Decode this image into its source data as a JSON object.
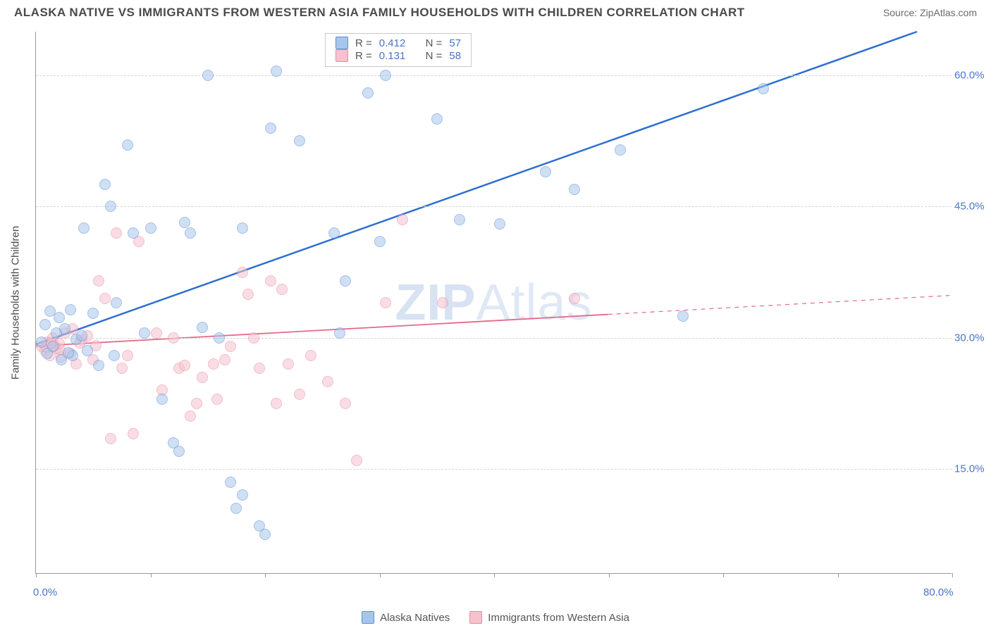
{
  "title": "ALASKA NATIVE VS IMMIGRANTS FROM WESTERN ASIA FAMILY HOUSEHOLDS WITH CHILDREN CORRELATION CHART",
  "source": "Source: ZipAtlas.com",
  "watermark_bold": "ZIP",
  "watermark_thin": "Atlas",
  "y_axis_label": "Family Households with Children",
  "xlim": [
    0,
    80
  ],
  "ylim": [
    3,
    65
  ],
  "x_ticks": [
    0,
    10,
    20,
    30,
    40,
    50,
    60,
    70,
    80
  ],
  "x_tick_labels_shown": {
    "0": "0.0%",
    "80": "80.0%"
  },
  "y_gridlines": [
    15,
    30,
    45,
    60
  ],
  "y_tick_labels": {
    "15": "15.0%",
    "30": "30.0%",
    "45": "45.0%",
    "60": "60.0%"
  },
  "series": {
    "blue": {
      "name": "Alaska Natives",
      "color_fill": "#a8c6ec",
      "color_stroke": "#5a8dd6",
      "trend_color": "#2e6fd1",
      "trend_width": 2.5,
      "R": "0.412",
      "N": "57",
      "trend": {
        "x1": 0,
        "y1": 29.2,
        "x2": 77,
        "y2": 65
      },
      "trend_solid_until_x": 77,
      "points": [
        [
          0.5,
          29.5
        ],
        [
          0.8,
          31.5
        ],
        [
          1.0,
          28.2
        ],
        [
          1.2,
          33.0
        ],
        [
          1.5,
          29.0
        ],
        [
          1.8,
          30.5
        ],
        [
          2.0,
          32.3
        ],
        [
          2.2,
          27.5
        ],
        [
          2.5,
          31.0
        ],
        [
          3.0,
          33.2
        ],
        [
          3.2,
          28.0
        ],
        [
          3.5,
          29.8
        ],
        [
          4.0,
          30.2
        ],
        [
          4.5,
          28.5
        ],
        [
          5.0,
          32.8
        ],
        [
          6.0,
          47.5
        ],
        [
          6.5,
          45.0
        ],
        [
          7.0,
          34.0
        ],
        [
          8.0,
          52.0
        ],
        [
          8.5,
          42.0
        ],
        [
          9.5,
          30.5
        ],
        [
          10.0,
          42.5
        ],
        [
          11.0,
          23.0
        ],
        [
          12.0,
          18.0
        ],
        [
          12.5,
          17.0
        ],
        [
          13.0,
          43.2
        ],
        [
          15.0,
          60.0
        ],
        [
          16.0,
          30.0
        ],
        [
          17.0,
          13.5
        ],
        [
          17.5,
          10.5
        ],
        [
          18.0,
          12.0
        ],
        [
          19.5,
          8.5
        ],
        [
          20.0,
          7.5
        ],
        [
          20.5,
          54.0
        ],
        [
          21.0,
          60.5
        ],
        [
          23.0,
          52.5
        ],
        [
          26.0,
          42.0
        ],
        [
          26.5,
          30.5
        ],
        [
          27.0,
          36.5
        ],
        [
          29.0,
          58.0
        ],
        [
          30.0,
          41.0
        ],
        [
          30.5,
          60.0
        ],
        [
          35.0,
          55.0
        ],
        [
          37.0,
          43.5
        ],
        [
          40.5,
          43.0
        ],
        [
          44.5,
          49.0
        ],
        [
          47.0,
          47.0
        ],
        [
          51.0,
          51.5
        ],
        [
          63.5,
          58.5
        ],
        [
          56.5,
          32.5
        ],
        [
          13.5,
          42.0
        ],
        [
          18.0,
          42.5
        ],
        [
          14.5,
          31.2
        ],
        [
          5.5,
          26.8
        ],
        [
          6.8,
          28.0
        ],
        [
          4.2,
          42.5
        ],
        [
          2.8,
          28.3
        ]
      ]
    },
    "pink": {
      "name": "Immigrants from Western Asia",
      "color_fill": "#f6c2ce",
      "color_stroke": "#e88aa0",
      "trend_color": "#e26b87",
      "trend_width": 1.8,
      "R": "0.131",
      "N": "58",
      "trend": {
        "x1": 0,
        "y1": 29.0,
        "x2": 80,
        "y2": 34.8
      },
      "trend_solid_until_x": 50,
      "points": [
        [
          0.5,
          29.0
        ],
        [
          0.8,
          28.5
        ],
        [
          1.0,
          29.5
        ],
        [
          1.2,
          28.0
        ],
        [
          1.5,
          30.0
        ],
        [
          1.8,
          28.8
        ],
        [
          2.0,
          29.3
        ],
        [
          2.2,
          27.8
        ],
        [
          2.5,
          30.5
        ],
        [
          3.0,
          28.2
        ],
        [
          3.2,
          31.0
        ],
        [
          3.5,
          27.0
        ],
        [
          4.0,
          29.7
        ],
        [
          4.5,
          30.2
        ],
        [
          5.0,
          27.5
        ],
        [
          5.5,
          36.5
        ],
        [
          6.0,
          34.5
        ],
        [
          7.0,
          42.0
        ],
        [
          7.5,
          26.5
        ],
        [
          8.0,
          28.0
        ],
        [
          8.5,
          19.0
        ],
        [
          9.0,
          41.0
        ],
        [
          10.5,
          30.5
        ],
        [
          11.0,
          24.0
        ],
        [
          12.0,
          30.0
        ],
        [
          12.5,
          26.5
        ],
        [
          13.0,
          26.8
        ],
        [
          13.5,
          21.0
        ],
        [
          14.0,
          22.5
        ],
        [
          14.5,
          25.5
        ],
        [
          15.5,
          27.0
        ],
        [
          15.8,
          23.0
        ],
        [
          16.5,
          27.5
        ],
        [
          17.0,
          29.0
        ],
        [
          18.0,
          37.5
        ],
        [
          18.5,
          35.0
        ],
        [
          19.0,
          30.0
        ],
        [
          19.5,
          26.5
        ],
        [
          20.5,
          36.5
        ],
        [
          21.0,
          22.5
        ],
        [
          21.5,
          35.5
        ],
        [
          22.0,
          27.0
        ],
        [
          23.0,
          23.5
        ],
        [
          24.0,
          28.0
        ],
        [
          25.5,
          25.0
        ],
        [
          27.0,
          22.5
        ],
        [
          28.0,
          16.0
        ],
        [
          30.5,
          34.0
        ],
        [
          32.0,
          43.5
        ],
        [
          35.5,
          34.0
        ],
        [
          47.0,
          34.5
        ],
        [
          5.2,
          29.1
        ],
        [
          3.8,
          29.4
        ],
        [
          2.1,
          28.7
        ],
        [
          1.6,
          29.1
        ],
        [
          0.9,
          28.9
        ],
        [
          1.3,
          29.4
        ],
        [
          6.5,
          18.5
        ]
      ]
    }
  },
  "legend_box": {
    "labels": {
      "R": "R =",
      "N": "N ="
    }
  },
  "colors": {
    "title_text": "#4a4a4a",
    "axis_text": "#4a74c9",
    "grid": "#d5d5d5",
    "border": "#999999",
    "background": "#ffffff"
  }
}
